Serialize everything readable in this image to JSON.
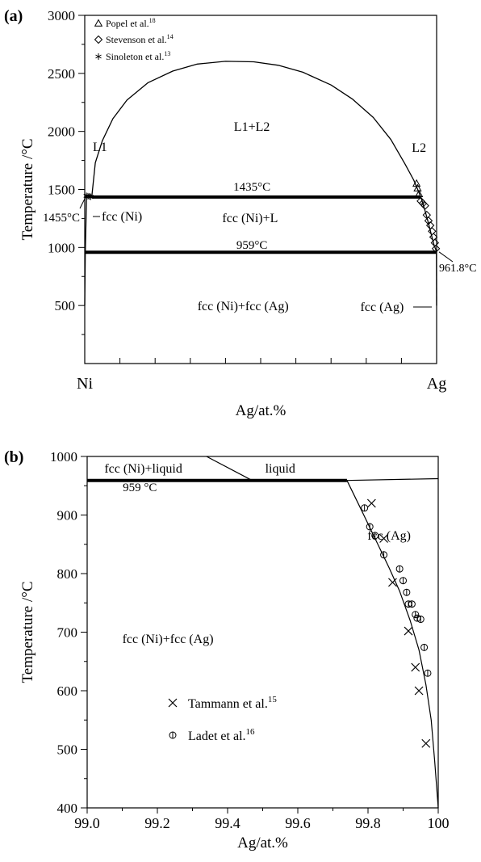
{
  "chart_data": [
    {
      "panel_label": "(a)",
      "type": "line",
      "xlabel": "Ag/at.%",
      "ylabel": "Temperature /°C",
      "x_tick_labels": [
        "Ni",
        "Ag"
      ],
      "xlim": [
        0,
        100
      ],
      "ylim": [
        0,
        3000
      ],
      "yticks": [
        500,
        1000,
        1500,
        2000,
        2500,
        3000
      ],
      "legend_position": "top-left",
      "legend": [
        {
          "marker": "triangle",
          "label": "Popel et al.",
          "ref": "18"
        },
        {
          "marker": "diamond",
          "label": "Stevenson et al.",
          "ref": "14"
        },
        {
          "marker": "asterisk",
          "label": "Sinoleton et al.",
          "ref": "13"
        }
      ],
      "region_labels": [
        "L1",
        "L1+L2",
        "L2",
        "fcc (Ni)+L",
        "fcc (Ni)+fcc (Ag)"
      ],
      "annotations": [
        "1435°C",
        "959°C",
        "1455°C",
        "fcc (Ni)",
        "961.8°C",
        "fcc (Ag)"
      ],
      "lines": {
        "monotectic": {
          "t": 1435,
          "x": [
            2,
            95.5
          ]
        },
        "eutectic": {
          "t": 959,
          "x": [
            0,
            100
          ]
        },
        "miscibility_gap": {
          "x": [
            2,
            3,
            5,
            8,
            12,
            18,
            25,
            32,
            40,
            48,
            55,
            62,
            70,
            76,
            82,
            87,
            91,
            93.5,
            95.5
          ],
          "t": [
            1435,
            1730,
            1920,
            2110,
            2270,
            2420,
            2520,
            2580,
            2604,
            2600,
            2570,
            2510,
            2400,
            2280,
            2120,
            1930,
            1720,
            1580,
            1435
          ]
        },
        "ni_liquidus": {
          "x": [
            0,
            0.4,
            0.9,
            1.5,
            2
          ],
          "t": [
            1455,
            1450,
            1445,
            1440,
            1435
          ]
        },
        "ni_solvus": {
          "x": [
            0,
            0.15,
            0.35,
            0.5
          ],
          "t": [
            500,
            959,
            1200,
            1435
          ]
        },
        "ag_liquidus": {
          "x": [
            95.5,
            96.5,
            97.5,
            98.5,
            99.3,
            100
          ],
          "t": [
            1435,
            1340,
            1230,
            1110,
            1020,
            962
          ]
        },
        "ag_solvus": {
          "x": [
            99.95,
            100
          ],
          "t": [
            959,
            500
          ]
        }
      },
      "series": [
        {
          "name": "Popel et al.",
          "marker": "triangle",
          "x": [
            94.3,
            94.6,
            95.0
          ],
          "y": [
            1550,
            1510,
            1460
          ]
        },
        {
          "name": "Stevenson et al.",
          "marker": "diamond",
          "x": [
            95.5,
            96.1,
            96.7,
            97.2,
            97.7,
            98.2,
            98.7,
            99.1,
            99.5,
            99.8
          ],
          "y": [
            1400,
            1380,
            1360,
            1280,
            1230,
            1190,
            1140,
            1090,
            1040,
            990
          ]
        },
        {
          "name": "Sinoleton et al.",
          "marker": "asterisk",
          "x": [
            0.5,
            0.9,
            1.3,
            1.7
          ],
          "y": [
            1445,
            1442,
            1440,
            1437
          ]
        }
      ]
    },
    {
      "panel_label": "(b)",
      "type": "line",
      "xlabel": "Ag/at.%",
      "ylabel": "Temperature /°C",
      "xlim": [
        99.0,
        100.0
      ],
      "ylim": [
        400,
        1000
      ],
      "xticks": [
        "99.0",
        "99.2",
        "99.4",
        "99.6",
        "99.8",
        "100"
      ],
      "yticks": [
        400,
        500,
        600,
        700,
        800,
        900,
        1000
      ],
      "region_labels": [
        "fcc (Ni)+liquid",
        "liquid",
        "fcc (Ag)",
        "fcc (Ni)+fcc (Ag)"
      ],
      "annotations": [
        "959 °C"
      ],
      "legend_position": "center",
      "legend": [
        {
          "marker": "x",
          "label": "Tammann et al.",
          "ref": "15"
        },
        {
          "marker": "circle",
          "label": "Ladet et al.",
          "ref": "16"
        }
      ],
      "lines": {
        "eutectic": {
          "t": 959,
          "x": [
            99.0,
            99.74
          ]
        },
        "liquidus_left": {
          "x": [
            99.34,
            99.47
          ],
          "t": [
            1000,
            959
          ]
        },
        "liquidus_right": {
          "x": [
            99.74,
            100.0
          ],
          "t": [
            959,
            962
          ]
        },
        "solvus": {
          "x": [
            99.74,
            99.78,
            99.82,
            99.86,
            99.89,
            99.92,
            99.945,
            99.965,
            99.98,
            99.99,
            100.0
          ],
          "t": [
            959,
            910,
            860,
            810,
            770,
            720,
            670,
            610,
            550,
            480,
            400
          ]
        }
      },
      "series": [
        {
          "name": "Tammann et al.",
          "marker": "x",
          "x": [
            99.81,
            99.845,
            99.87,
            99.915,
            99.935,
            99.945,
            99.965
          ],
          "y": [
            920,
            860,
            785,
            702,
            640,
            600,
            510
          ]
        },
        {
          "name": "Ladet et al.",
          "marker": "circle",
          "x": [
            99.79,
            99.805,
            99.82,
            99.845,
            99.89,
            99.9,
            99.91,
            99.915,
            99.925,
            99.935,
            99.94,
            99.95,
            99.96,
            99.97
          ],
          "y": [
            912,
            880,
            865,
            832,
            808,
            788,
            768,
            748,
            748,
            730,
            724,
            722,
            674,
            630
          ]
        }
      ]
    }
  ]
}
